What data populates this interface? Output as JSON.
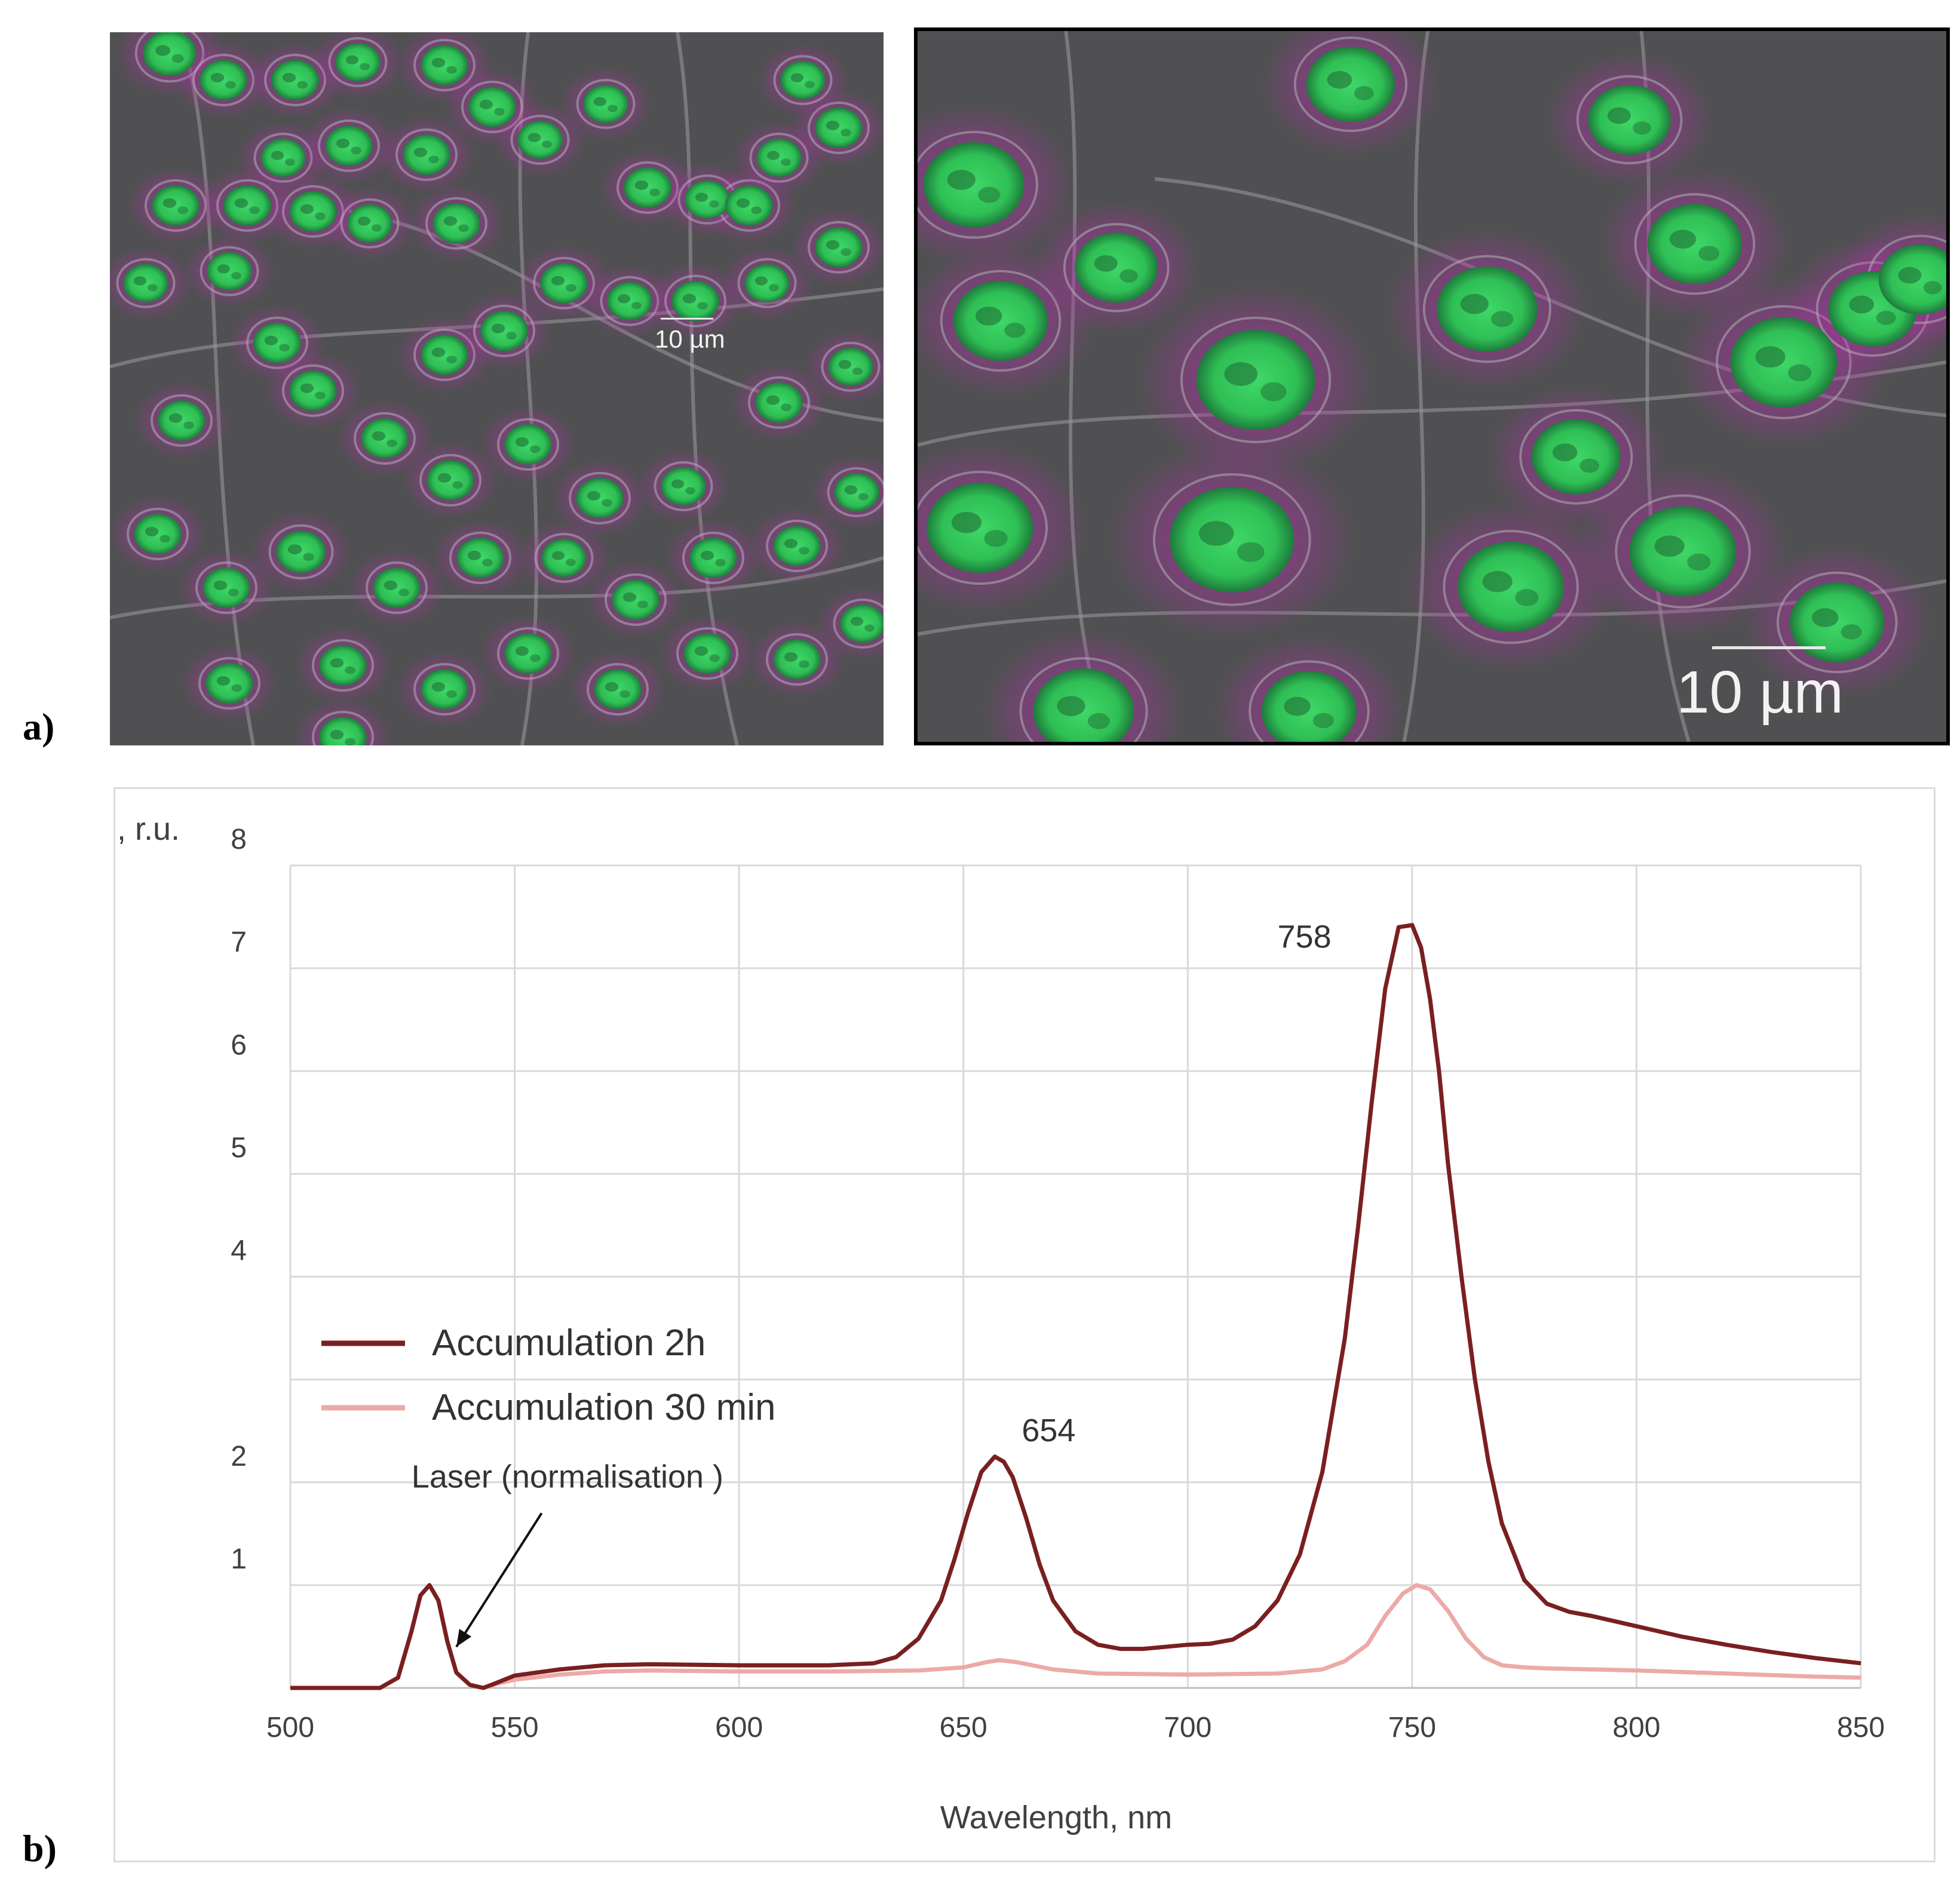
{
  "panels": {
    "a_label": "a)",
    "b_label": "b)"
  },
  "micrographs": {
    "left": {
      "scale_bar": "10 µm"
    },
    "right": {
      "scale_bar": "10 µm"
    },
    "colors": {
      "nucleus": "#2fbf55",
      "cytoplasm": "#b030a8",
      "background": "#505052"
    }
  },
  "chart_data": {
    "type": "line",
    "ylabel": "I, r.u.",
    "xlabel": "Wavelength, nm",
    "xlim": [
      500,
      850
    ],
    "ylim": [
      0,
      8
    ],
    "x_ticks": [
      500,
      550,
      600,
      650,
      700,
      750,
      800,
      850
    ],
    "y_ticks": [
      1,
      2,
      4,
      5,
      6,
      7,
      8
    ],
    "grid": true,
    "legend_position": "left-middle",
    "series": [
      {
        "name": "Accumulation 2h",
        "color": "#7a1f1f",
        "x": [
          500,
          520,
          524,
          527,
          529,
          531,
          533,
          535,
          537,
          540,
          543,
          546,
          550,
          560,
          570,
          580,
          600,
          620,
          630,
          635,
          640,
          645,
          648,
          651,
          654,
          657,
          659,
          661,
          664,
          667,
          670,
          675,
          680,
          685,
          690,
          695,
          700,
          705,
          710,
          715,
          720,
          725,
          730,
          735,
          738,
          741,
          744,
          747,
          750,
          752,
          754,
          756,
          758,
          761,
          764,
          767,
          770,
          775,
          780,
          785,
          790,
          800,
          810,
          820,
          830,
          840,
          850
        ],
        "y": [
          0,
          0,
          0.1,
          0.55,
          0.9,
          1.0,
          0.85,
          0.45,
          0.15,
          0.03,
          0,
          0.05,
          0.12,
          0.18,
          0.22,
          0.23,
          0.22,
          0.22,
          0.24,
          0.3,
          0.48,
          0.85,
          1.25,
          1.7,
          2.1,
          2.25,
          2.2,
          2.05,
          1.65,
          1.2,
          0.85,
          0.55,
          0.42,
          0.38,
          0.38,
          0.4,
          0.42,
          0.43,
          0.47,
          0.6,
          0.85,
          1.3,
          2.1,
          3.4,
          4.5,
          5.7,
          6.8,
          7.4,
          7.42,
          7.2,
          6.7,
          6.0,
          5.1,
          4.0,
          3.0,
          2.2,
          1.6,
          1.05,
          0.82,
          0.74,
          0.7,
          0.6,
          0.5,
          0.42,
          0.35,
          0.29,
          0.24
        ]
      },
      {
        "name": "Accumulation 30 min",
        "color": "#ecaaa6",
        "x": [
          500,
          520,
          524,
          527,
          529,
          531,
          533,
          535,
          537,
          540,
          543,
          546,
          550,
          560,
          570,
          580,
          600,
          620,
          640,
          650,
          655,
          658,
          662,
          670,
          680,
          700,
          720,
          730,
          735,
          740,
          744,
          748,
          751,
          754,
          758,
          762,
          766,
          770,
          775,
          780,
          790,
          800,
          820,
          840,
          850
        ],
        "y": [
          0,
          0,
          0.1,
          0.55,
          0.9,
          1.0,
          0.85,
          0.45,
          0.15,
          0.03,
          0,
          0.04,
          0.08,
          0.13,
          0.16,
          0.17,
          0.16,
          0.16,
          0.17,
          0.2,
          0.25,
          0.27,
          0.25,
          0.18,
          0.14,
          0.13,
          0.14,
          0.18,
          0.26,
          0.42,
          0.7,
          0.92,
          1.0,
          0.96,
          0.75,
          0.48,
          0.3,
          0.22,
          0.2,
          0.19,
          0.18,
          0.17,
          0.14,
          0.11,
          0.1
        ]
      }
    ],
    "annotations": [
      {
        "text": "758",
        "x": 720,
        "y": 7.2
      },
      {
        "text": "654",
        "x": 663,
        "y": 2.4
      },
      {
        "text": "Laser (normalisation )",
        "x": 527,
        "y": 1.95
      }
    ]
  }
}
